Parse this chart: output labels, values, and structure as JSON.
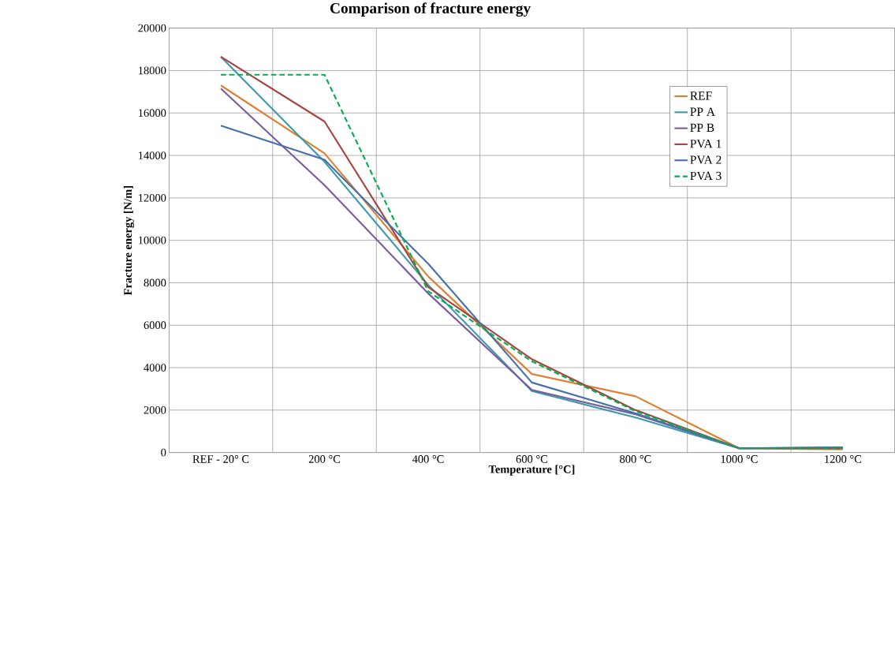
{
  "chart_data": {
    "type": "line",
    "title": "Comparison of fracture energy",
    "xlabel": "Temperature  [°C]",
    "ylabel": "Fracture energy  [N/m]",
    "categories": [
      "REF - 20° C",
      "200 °C",
      "400 °C",
      "600 °C",
      "800 °C",
      "1000 °C",
      "1200 °C"
    ],
    "series": [
      {
        "name": "REF",
        "color": "#e07f30",
        "values": [
          17300,
          14100,
          8300,
          3700,
          2650,
          200,
          150
        ]
      },
      {
        "name": "PP A",
        "color": "#3b9aab",
        "values": [
          18650,
          13700,
          7900,
          2900,
          1650,
          200,
          250
        ]
      },
      {
        "name": "PP B",
        "color": "#7a5b9b",
        "values": [
          17150,
          12600,
          7500,
          2950,
          1800,
          200,
          200
        ]
      },
      {
        "name": "PVA 1",
        "color": "#aa4240",
        "values": [
          18650,
          15600,
          7800,
          4400,
          2000,
          200,
          200
        ]
      },
      {
        "name": "PVA 2",
        "color": "#4670ac",
        "values": [
          15400,
          13800,
          8900,
          3300,
          1850,
          200,
          250
        ]
      },
      {
        "name": "PVA 3",
        "color": "#00b050",
        "line_style": "dashed",
        "values": [
          17800,
          17800,
          7600,
          4300,
          1950,
          200,
          200
        ]
      }
    ],
    "ylim": [
      0,
      20000
    ],
    "yticks": [
      0,
      2000,
      4000,
      6000,
      8000,
      10000,
      12000,
      14000,
      16000,
      18000,
      20000
    ],
    "grid": true,
    "legend": "right",
    "marker": "none",
    "line_style": "solid"
  }
}
